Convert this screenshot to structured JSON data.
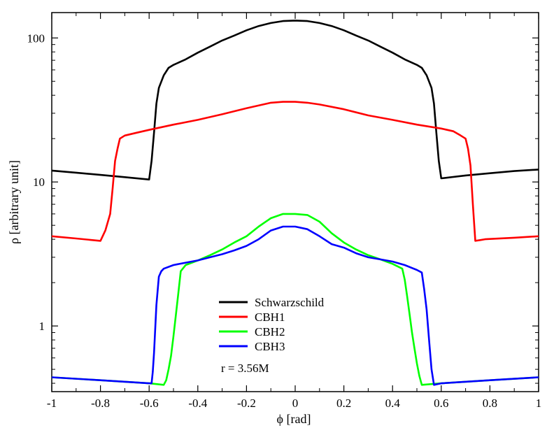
{
  "chart_data": {
    "type": "line",
    "title": "",
    "xlabel": "ϕ [rad]",
    "ylabel": "ρ [arbitrary unit]",
    "xlim": [
      -1,
      1
    ],
    "ylim": [
      0.35,
      150
    ],
    "yscale": "log",
    "grid": false,
    "legend_position": "bottom-center",
    "x_ticks": [
      -1,
      -0.8,
      -0.6,
      -0.4,
      -0.2,
      0,
      0.2,
      0.4,
      0.6,
      0.8,
      1
    ],
    "x_tick_labels": [
      "-1",
      "-0.8",
      "-0.6",
      "-0.4",
      "-0.2",
      "0",
      "0.2",
      "0.4",
      "0.6",
      "0.8",
      "1"
    ],
    "y_ticks": [
      1,
      10,
      100
    ],
    "y_tick_labels": [
      "1",
      "10",
      "100"
    ],
    "annotation": "r = 3.56M",
    "series": [
      {
        "name": "Schwarzschild",
        "color": "#000000",
        "x": [
          -1,
          -0.9,
          -0.8,
          -0.7,
          -0.6,
          -0.59,
          -0.58,
          -0.57,
          -0.56,
          -0.54,
          -0.52,
          -0.5,
          -0.45,
          -0.4,
          -0.35,
          -0.3,
          -0.25,
          -0.2,
          -0.15,
          -0.1,
          -0.05,
          0,
          0.05,
          0.1,
          0.15,
          0.2,
          0.25,
          0.3,
          0.35,
          0.4,
          0.45,
          0.5,
          0.52,
          0.54,
          0.56,
          0.57,
          0.58,
          0.59,
          0.6,
          0.7,
          0.8,
          0.9,
          1
        ],
        "y": [
          12,
          11.6,
          11.2,
          10.8,
          10.4,
          14,
          22,
          35,
          45,
          55,
          62,
          65,
          71,
          79,
          87,
          96,
          104,
          113,
          121,
          127,
          131,
          132,
          131,
          127,
          121,
          113,
          104,
          96,
          87,
          79,
          71,
          65,
          62,
          55,
          45,
          35,
          22,
          14,
          10.6,
          11.1,
          11.5,
          11.9,
          12.2
        ]
      },
      {
        "name": "CBH1",
        "color": "#ff0000",
        "x": [
          -1,
          -0.9,
          -0.8,
          -0.78,
          -0.76,
          -0.75,
          -0.74,
          -0.73,
          -0.72,
          -0.7,
          -0.65,
          -0.6,
          -0.5,
          -0.4,
          -0.3,
          -0.2,
          -0.1,
          -0.05,
          0,
          0.05,
          0.1,
          0.2,
          0.3,
          0.4,
          0.5,
          0.6,
          0.65,
          0.68,
          0.7,
          0.71,
          0.72,
          0.73,
          0.74,
          0.76,
          0.78,
          0.8,
          0.9,
          1
        ],
        "y": [
          4.2,
          4.05,
          3.9,
          4.6,
          6,
          9,
          14,
          17,
          20,
          21,
          22,
          23,
          25,
          27,
          29.5,
          32.5,
          35.5,
          36,
          36,
          35.5,
          34.5,
          32,
          29,
          27,
          25,
          23.5,
          22.5,
          21,
          20,
          17,
          13,
          7,
          3.9,
          3.95,
          4,
          4.02,
          4.1,
          4.2
        ]
      },
      {
        "name": "CBH2",
        "color": "#00ff00",
        "x": [
          -1,
          -0.8,
          -0.6,
          -0.54,
          -0.53,
          -0.52,
          -0.51,
          -0.5,
          -0.49,
          -0.48,
          -0.47,
          -0.45,
          -0.4,
          -0.35,
          -0.3,
          -0.25,
          -0.2,
          -0.15,
          -0.1,
          -0.05,
          0,
          0.05,
          0.1,
          0.15,
          0.2,
          0.25,
          0.3,
          0.35,
          0.4,
          0.44,
          0.45,
          0.46,
          0.47,
          0.48,
          0.49,
          0.5,
          0.51,
          0.52,
          0.6,
          0.8,
          1
        ],
        "y": [
          0.44,
          0.42,
          0.4,
          0.39,
          0.42,
          0.5,
          0.62,
          0.85,
          1.2,
          1.7,
          2.4,
          2.65,
          2.85,
          3.1,
          3.4,
          3.8,
          4.2,
          4.9,
          5.6,
          6,
          6,
          5.9,
          5.3,
          4.4,
          3.8,
          3.4,
          3.1,
          2.9,
          2.7,
          2.5,
          2.1,
          1.6,
          1.2,
          0.9,
          0.7,
          0.55,
          0.45,
          0.39,
          0.4,
          0.42,
          0.44
        ]
      },
      {
        "name": "CBH3",
        "color": "#0000ff",
        "x": [
          -1,
          -0.8,
          -0.6,
          -0.59,
          -0.585,
          -0.58,
          -0.57,
          -0.56,
          -0.55,
          -0.54,
          -0.5,
          -0.45,
          -0.4,
          -0.35,
          -0.3,
          -0.25,
          -0.2,
          -0.15,
          -0.1,
          -0.05,
          0,
          0.05,
          0.1,
          0.15,
          0.2,
          0.25,
          0.3,
          0.35,
          0.4,
          0.45,
          0.5,
          0.52,
          0.53,
          0.54,
          0.55,
          0.56,
          0.57,
          0.6,
          0.8,
          1
        ],
        "y": [
          0.44,
          0.42,
          0.4,
          0.4,
          0.48,
          0.65,
          1.4,
          2.2,
          2.4,
          2.5,
          2.65,
          2.75,
          2.85,
          3.0,
          3.15,
          3.35,
          3.6,
          4.0,
          4.6,
          4.9,
          4.9,
          4.7,
          4.2,
          3.7,
          3.5,
          3.2,
          3.0,
          2.9,
          2.8,
          2.65,
          2.45,
          2.35,
          1.8,
          1.3,
          0.8,
          0.5,
          0.39,
          0.4,
          0.42,
          0.44
        ]
      }
    ]
  }
}
